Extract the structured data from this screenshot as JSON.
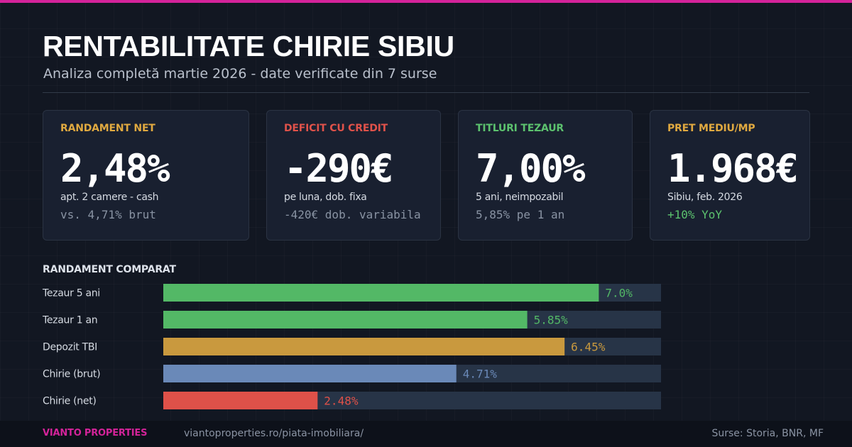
{
  "header": {
    "title": "RENTABILITATE CHIRIE SIBIU",
    "subtitle": "Analiza completă martie 2026  -  date verificate din 7 surse"
  },
  "cards": [
    {
      "label": "RANDAMENT NET",
      "value": "2,48%",
      "sub": "apt. 2 camere - cash",
      "note": "vs. 4,71% brut",
      "color": "#e0a940"
    },
    {
      "label": "DEFICIT CU CREDIT",
      "value": "-290€",
      "sub": "pe luna, dob. fixa",
      "note": "-420€ dob. variabila",
      "color": "#e0524a"
    },
    {
      "label": "TITLURI TEZAUR",
      "value": "7,00%",
      "sub": "5 ani, neimpozabil",
      "note": "5,85% pe 1 an",
      "color": "#5cc26e"
    },
    {
      "label": "PRET MEDIU/MP",
      "value": "1.968€",
      "sub": "Sibiu, feb. 2026",
      "note": "+10% YoY",
      "color": "#e0a940",
      "note_color": "#5cc26e"
    }
  ],
  "chart_data": {
    "type": "bar",
    "orientation": "horizontal",
    "title": "RANDAMENT COMPARAT",
    "categories": [
      "Tezaur 5 ani",
      "Tezaur 1 an",
      "Depozit TBI",
      "Chirie (brut)",
      "Chirie (net)"
    ],
    "values": [
      7.0,
      5.85,
      6.45,
      4.71,
      2.48
    ],
    "value_labels": [
      "7.0%",
      "5.85%",
      "6.45%",
      "4.71%",
      "2.48%"
    ],
    "colors": [
      "#53b866",
      "#53b866",
      "#c9993e",
      "#6a89b8",
      "#de5149"
    ],
    "xlim": [
      0,
      8
    ],
    "grid": false,
    "legend": "none"
  },
  "footer": {
    "brand": "VIANTO PROPERTIES",
    "url": "viantoproperties.ro/piata-imobiliara/",
    "sources": "Surse: Storia, BNR, MF"
  }
}
